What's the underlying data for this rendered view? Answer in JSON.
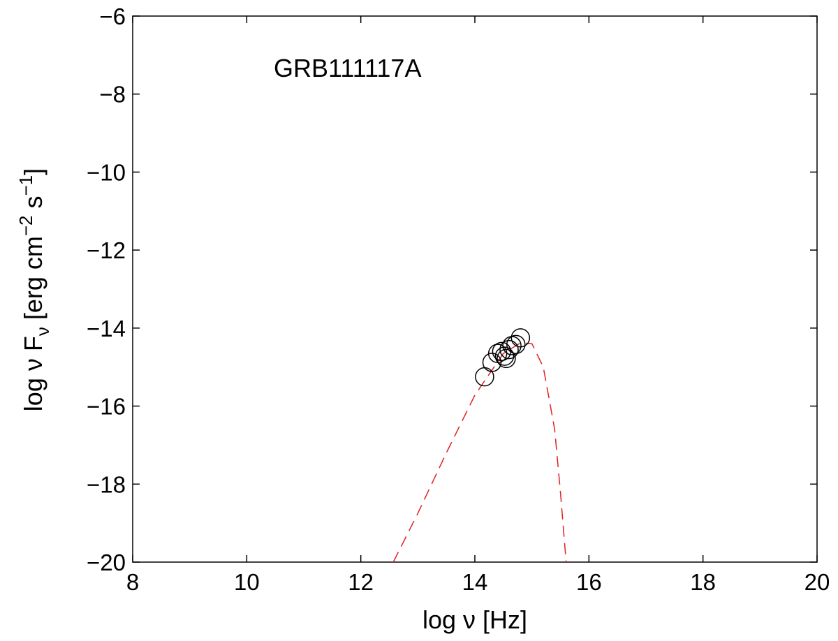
{
  "chart_data": {
    "type": "scatter",
    "xlabel": "log ν [Hz]",
    "ylabel_main": "log ν F",
    "ylabel_sub": "ν",
    "ylabel_unit_1": " [erg cm",
    "ylabel_sup_1": "−2",
    "ylabel_unit_2": " s",
    "ylabel_sup_2": "−1",
    "ylabel_close": "]",
    "annotation": "GRB111117A",
    "xlim": [
      8,
      20
    ],
    "ylim": [
      -20,
      -6
    ],
    "xticks": [
      8,
      10,
      12,
      14,
      16,
      18,
      20
    ],
    "yticks": [
      -20,
      -18,
      -16,
      -14,
      -12,
      -10,
      -8,
      -6
    ],
    "xtick_labels": [
      "8",
      "10",
      "12",
      "14",
      "16",
      "18",
      "20"
    ],
    "ytick_labels": [
      "−20",
      "−18",
      "−16",
      "−14",
      "−12",
      "−10",
      "−8",
      "−6"
    ],
    "grid": false,
    "series": [
      {
        "kind": "points",
        "marker": "open-circle",
        "color": "#000000",
        "x": [
          14.17,
          14.3,
          14.4,
          14.47,
          14.52,
          14.55,
          14.6,
          14.65,
          14.72,
          14.8
        ],
        "y": [
          -15.25,
          -14.88,
          -14.65,
          -14.6,
          -14.72,
          -14.78,
          -14.55,
          -14.45,
          -14.42,
          -14.25
        ]
      },
      {
        "kind": "line",
        "style": "dashed",
        "color": "#e02020",
        "x": [
          12.57,
          13.0,
          13.5,
          14.0,
          14.5,
          14.8,
          15.0,
          15.2,
          15.4,
          15.5,
          15.6
        ],
        "y": [
          -20.0,
          -18.75,
          -17.2,
          -15.72,
          -14.65,
          -14.38,
          -14.4,
          -15.0,
          -16.6,
          -18.2,
          -20.0
        ]
      }
    ]
  }
}
